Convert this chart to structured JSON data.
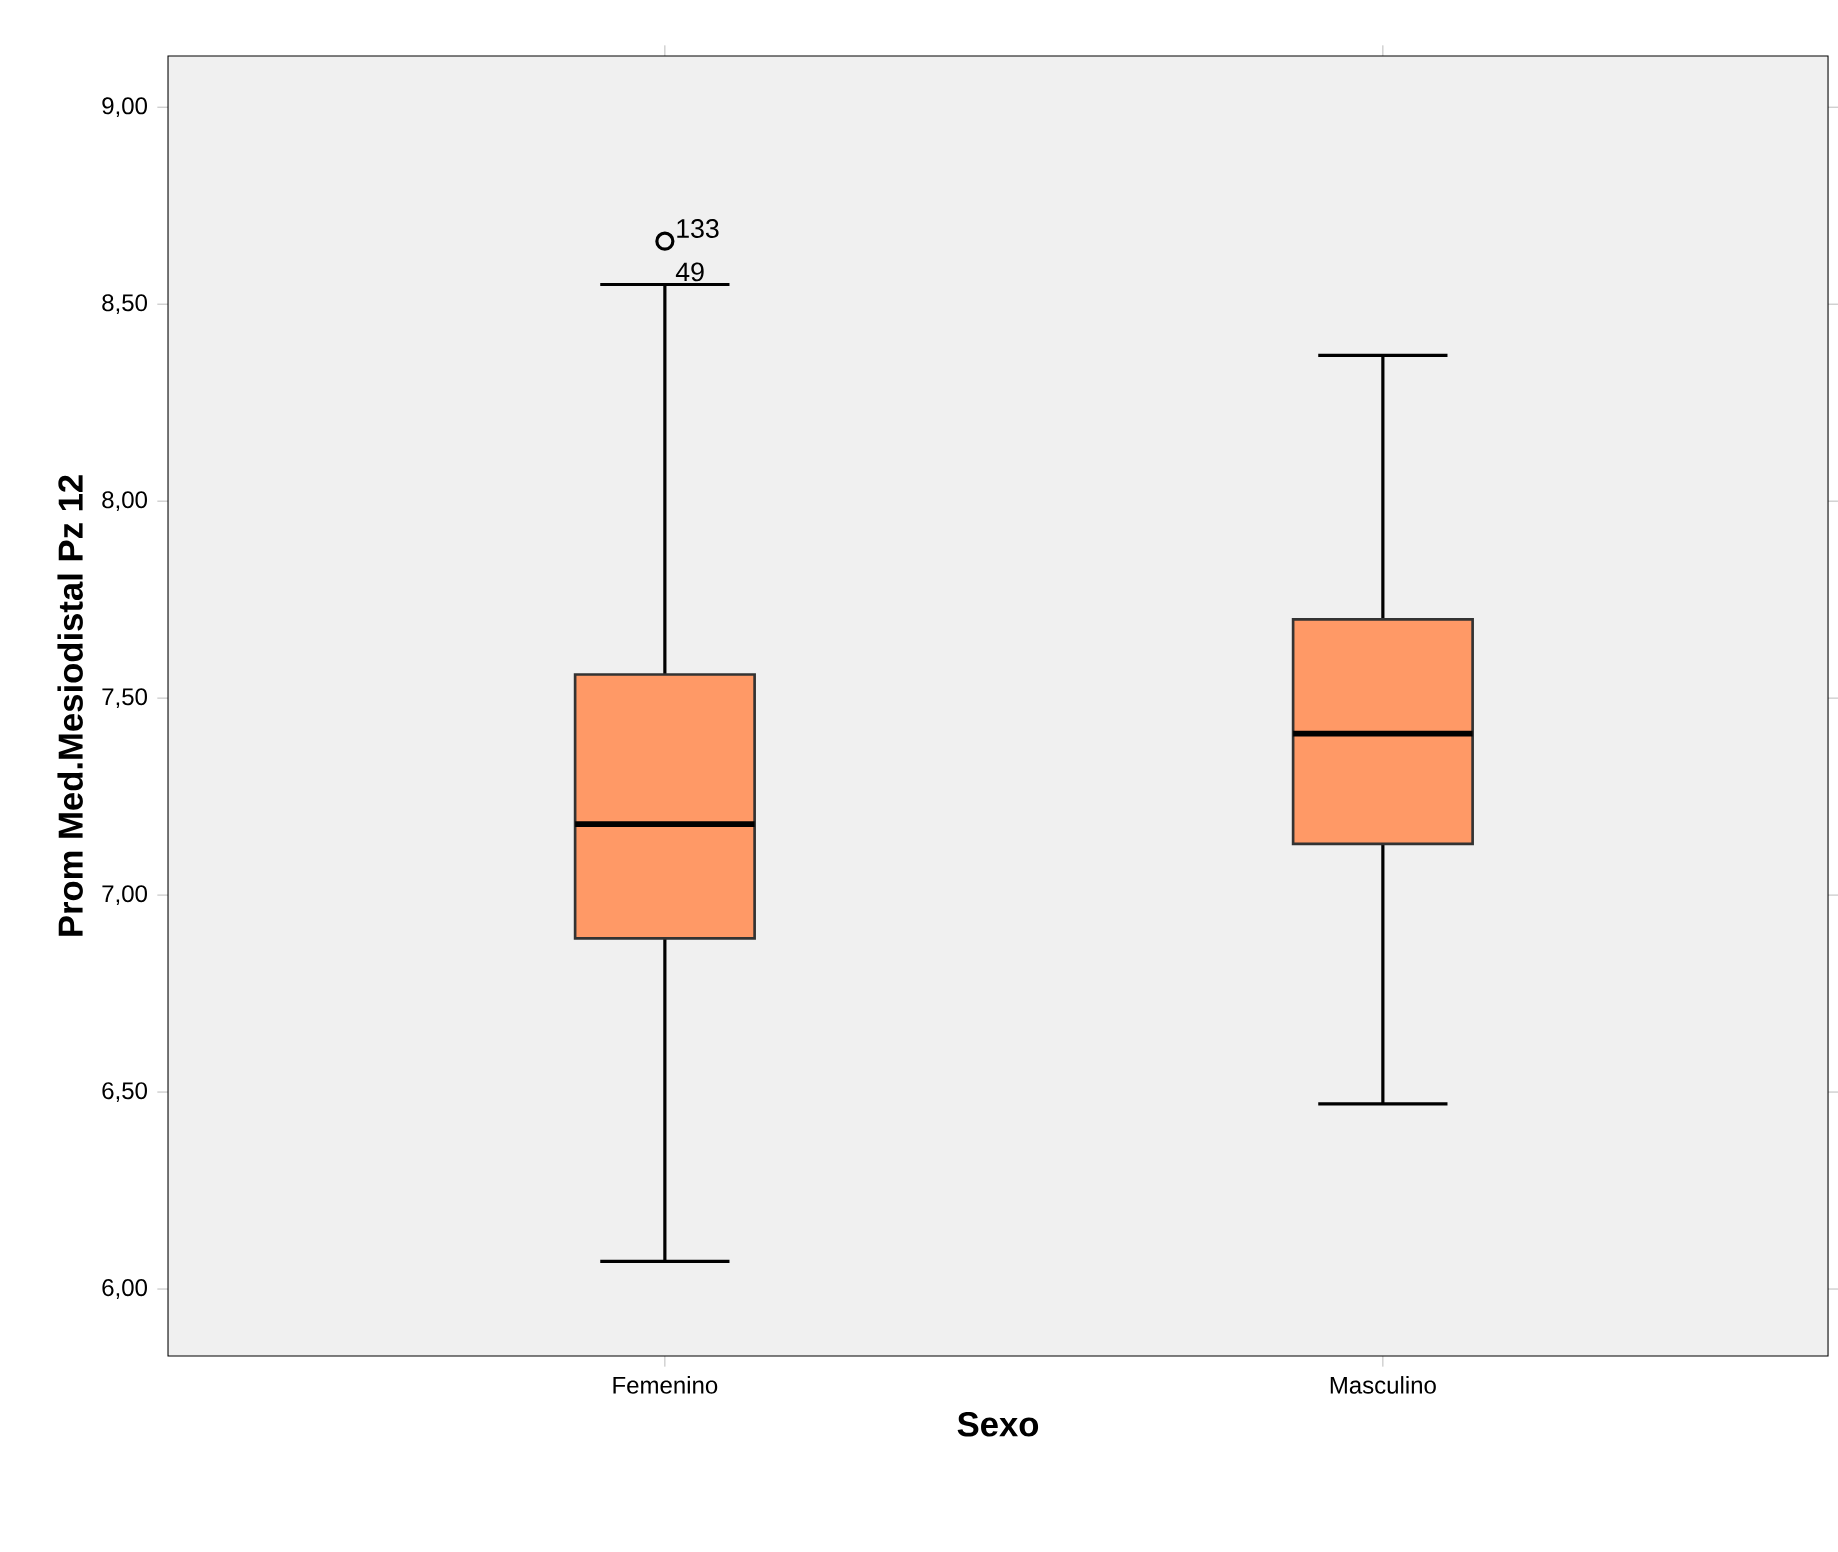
{
  "chart_data": {
    "type": "box",
    "xlabel": "Sexo",
    "ylabel": "Prom Med.Mesiodistal Pz 12",
    "categories": [
      "Femenino",
      "Masculino"
    ],
    "color": "#ff9966",
    "boxes": [
      {
        "low": 6.07,
        "q1": 6.89,
        "median": 7.18,
        "q3": 7.56,
        "high": 8.55,
        "outliers": [
          8.66
        ]
      },
      {
        "low": 6.47,
        "q1": 7.13,
        "median": 7.41,
        "q3": 7.7,
        "high": 8.37
      }
    ],
    "ylim": [
      5.83,
      9.13
    ],
    "yticks": [
      {
        "value": 6,
        "label": "6,00"
      },
      {
        "value": 6.5,
        "label": "6,50"
      },
      {
        "value": 7,
        "label": "7,00"
      },
      {
        "value": 7.5,
        "label": "7,50"
      },
      {
        "value": 8,
        "label": "8,00"
      },
      {
        "value": 8.5,
        "label": "8,50"
      },
      {
        "value": 9,
        "label": "9,00"
      }
    ],
    "annotations": [
      "133",
      "49"
    ],
    "grid": false
  }
}
